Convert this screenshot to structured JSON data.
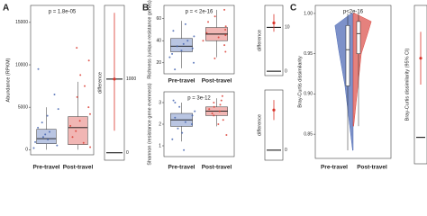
{
  "chart_data": [
    {
      "type": "box",
      "label": "A",
      "ylabel": "Abundance (RPKM)",
      "annotation": "p = 1.8e-05",
      "categories": [
        "Pre-travel",
        "Post-travel"
      ],
      "colors": [
        "#3f5fae",
        "#d9342b"
      ],
      "fills": [
        "#b9c5e2",
        "#f1b6b4"
      ],
      "ylim": [
        -600,
        17000
      ],
      "yticks": [
        0,
        5000,
        10000,
        15000
      ],
      "boxes": [
        {
          "min": 0,
          "q1": 700,
          "median": 1300,
          "q3": 2400,
          "max": 5000
        },
        {
          "min": 0,
          "q1": 600,
          "median": 2600,
          "q3": 3900,
          "max": 8000
        }
      ],
      "points": [
        [
          200,
          500,
          900,
          1200,
          1500,
          1800,
          2100,
          2600,
          3200,
          4000,
          4800,
          6500,
          9500
        ],
        [
          300,
          800,
          1500,
          2200,
          2800,
          3400,
          4200,
          5000,
          6200,
          7500,
          8800,
          10500,
          12000
        ]
      ],
      "difference": {
        "label": "difference",
        "value": 1000,
        "lower": 300,
        "upper": 1900,
        "ylim": [
          -100,
          2000
        ],
        "yticks": [
          0,
          1000
        ]
      }
    },
    {
      "type": "box",
      "label": "B",
      "ylabel": "Richness (unique resistance genes)",
      "annotation": "p = < 2e-16",
      "categories": [
        "Pre-travel",
        "Post-travel"
      ],
      "colors": [
        "#3f5fae",
        "#d9342b"
      ],
      "fills": [
        "#b9c5e2",
        "#f1b6b4"
      ],
      "ylim": [
        10,
        72
      ],
      "yticks": [
        20,
        40,
        60
      ],
      "boxes": [
        {
          "min": 15,
          "q1": 30,
          "median": 35,
          "q3": 42,
          "max": 58
        },
        {
          "min": 25,
          "q1": 40,
          "median": 46,
          "q3": 52,
          "max": 68
        }
      ],
      "points": [
        [
          14,
          20,
          25,
          28,
          31,
          33,
          35,
          37,
          40,
          44,
          49,
          55
        ],
        [
          24,
          30,
          36,
          40,
          43,
          45,
          47,
          50,
          53,
          57,
          62,
          68
        ]
      ],
      "difference": {
        "label": "difference",
        "value": 11,
        "lower": 9,
        "upper": 13,
        "ylim": [
          -1,
          15
        ],
        "yticks": [
          0,
          10
        ]
      }
    },
    {
      "type": "box",
      "ylabel": "Shannon (resistance gene evenness)",
      "annotation": "p = 3e-12",
      "categories": [
        "Pre-travel",
        "Post-travel"
      ],
      "colors": [
        "#3f5fae",
        "#d9342b"
      ],
      "fills": [
        "#b9c5e2",
        "#f1b6b4"
      ],
      "ylim": [
        0.5,
        3.5
      ],
      "yticks": [
        1,
        2,
        3
      ],
      "boxes": [
        {
          "min": 1.2,
          "q1": 1.9,
          "median": 2.2,
          "q3": 2.5,
          "max": 3.0
        },
        {
          "min": 1.9,
          "q1": 2.4,
          "median": 2.6,
          "q3": 2.8,
          "max": 3.2
        }
      ],
      "points": [
        [
          0.8,
          1.3,
          1.6,
          1.8,
          2.0,
          2.1,
          2.3,
          2.4,
          2.6,
          2.8,
          3.0,
          3.1
        ],
        [
          1.5,
          2.0,
          2.2,
          2.4,
          2.5,
          2.6,
          2.7,
          2.8,
          2.9,
          3.0,
          3.1,
          3.3
        ]
      ],
      "difference": {
        "label": "difference",
        "value": 0.4,
        "lower": 0.3,
        "upper": 0.5,
        "ylim": [
          -0.1,
          0.6
        ],
        "yticks": [
          0
        ]
      }
    },
    {
      "type": "violin",
      "label": "C",
      "ylabel": "Bray-Curtis dissimilarity",
      "annotation": "p<2e-16",
      "categories": [
        "Pre-travel",
        "Post-travel"
      ],
      "colors": [
        "#3f5fae",
        "#d9342b"
      ],
      "fills": [
        "#6f86c4",
        "#e37470"
      ],
      "ylim": [
        0.82,
        1.01
      ],
      "yticks": [
        0.85,
        {
          "value": 0.9,
          "label": "0.90"
        },
        0.95,
        {
          "value": 1,
          "label": "1.00"
        }
      ],
      "boxes": [
        {
          "min": 0.83,
          "q1": 0.91,
          "median": 0.955,
          "q3": 0.985,
          "max": 1.0
        },
        {
          "min": 0.86,
          "q1": 0.95,
          "median": 0.975,
          "q3": 0.99,
          "max": 1.0
        }
      ],
      "difference": {
        "label": "Bray-Curtis dissimilarity (95% CI)",
        "value": 0.03,
        "lower": 0.02,
        "upper": 0.04,
        "ylim": [
          -0.01,
          0.05
        ],
        "yticks": [
          0
        ]
      }
    }
  ]
}
